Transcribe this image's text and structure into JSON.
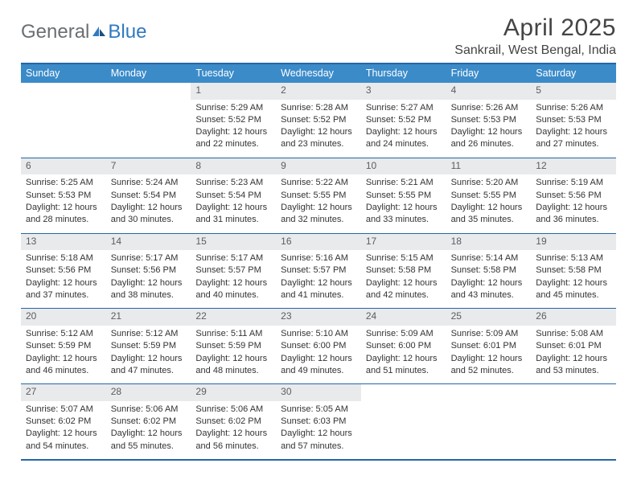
{
  "brand": {
    "general": "General",
    "blue": "Blue"
  },
  "title": "April 2025",
  "location": "Sankrail, West Bengal, India",
  "colors": {
    "header_bg": "#3b8bc9",
    "border": "#2567a5",
    "daynum_bg": "#e9eaec",
    "text": "#333333",
    "brand_gray": "#6a6f73",
    "brand_blue": "#2f7ac1"
  },
  "day_headers": [
    "Sunday",
    "Monday",
    "Tuesday",
    "Wednesday",
    "Thursday",
    "Friday",
    "Saturday"
  ],
  "weeks": [
    [
      null,
      null,
      {
        "n": "1",
        "sr": "5:29 AM",
        "ss": "5:52 PM",
        "dl1": "Daylight: 12 hours",
        "dl2": "and 22 minutes."
      },
      {
        "n": "2",
        "sr": "5:28 AM",
        "ss": "5:52 PM",
        "dl1": "Daylight: 12 hours",
        "dl2": "and 23 minutes."
      },
      {
        "n": "3",
        "sr": "5:27 AM",
        "ss": "5:52 PM",
        "dl1": "Daylight: 12 hours",
        "dl2": "and 24 minutes."
      },
      {
        "n": "4",
        "sr": "5:26 AM",
        "ss": "5:53 PM",
        "dl1": "Daylight: 12 hours",
        "dl2": "and 26 minutes."
      },
      {
        "n": "5",
        "sr": "5:26 AM",
        "ss": "5:53 PM",
        "dl1": "Daylight: 12 hours",
        "dl2": "and 27 minutes."
      }
    ],
    [
      {
        "n": "6",
        "sr": "5:25 AM",
        "ss": "5:53 PM",
        "dl1": "Daylight: 12 hours",
        "dl2": "and 28 minutes."
      },
      {
        "n": "7",
        "sr": "5:24 AM",
        "ss": "5:54 PM",
        "dl1": "Daylight: 12 hours",
        "dl2": "and 30 minutes."
      },
      {
        "n": "8",
        "sr": "5:23 AM",
        "ss": "5:54 PM",
        "dl1": "Daylight: 12 hours",
        "dl2": "and 31 minutes."
      },
      {
        "n": "9",
        "sr": "5:22 AM",
        "ss": "5:55 PM",
        "dl1": "Daylight: 12 hours",
        "dl2": "and 32 minutes."
      },
      {
        "n": "10",
        "sr": "5:21 AM",
        "ss": "5:55 PM",
        "dl1": "Daylight: 12 hours",
        "dl2": "and 33 minutes."
      },
      {
        "n": "11",
        "sr": "5:20 AM",
        "ss": "5:55 PM",
        "dl1": "Daylight: 12 hours",
        "dl2": "and 35 minutes."
      },
      {
        "n": "12",
        "sr": "5:19 AM",
        "ss": "5:56 PM",
        "dl1": "Daylight: 12 hours",
        "dl2": "and 36 minutes."
      }
    ],
    [
      {
        "n": "13",
        "sr": "5:18 AM",
        "ss": "5:56 PM",
        "dl1": "Daylight: 12 hours",
        "dl2": "and 37 minutes."
      },
      {
        "n": "14",
        "sr": "5:17 AM",
        "ss": "5:56 PM",
        "dl1": "Daylight: 12 hours",
        "dl2": "and 38 minutes."
      },
      {
        "n": "15",
        "sr": "5:17 AM",
        "ss": "5:57 PM",
        "dl1": "Daylight: 12 hours",
        "dl2": "and 40 minutes."
      },
      {
        "n": "16",
        "sr": "5:16 AM",
        "ss": "5:57 PM",
        "dl1": "Daylight: 12 hours",
        "dl2": "and 41 minutes."
      },
      {
        "n": "17",
        "sr": "5:15 AM",
        "ss": "5:58 PM",
        "dl1": "Daylight: 12 hours",
        "dl2": "and 42 minutes."
      },
      {
        "n": "18",
        "sr": "5:14 AM",
        "ss": "5:58 PM",
        "dl1": "Daylight: 12 hours",
        "dl2": "and 43 minutes."
      },
      {
        "n": "19",
        "sr": "5:13 AM",
        "ss": "5:58 PM",
        "dl1": "Daylight: 12 hours",
        "dl2": "and 45 minutes."
      }
    ],
    [
      {
        "n": "20",
        "sr": "5:12 AM",
        "ss": "5:59 PM",
        "dl1": "Daylight: 12 hours",
        "dl2": "and 46 minutes."
      },
      {
        "n": "21",
        "sr": "5:12 AM",
        "ss": "5:59 PM",
        "dl1": "Daylight: 12 hours",
        "dl2": "and 47 minutes."
      },
      {
        "n": "22",
        "sr": "5:11 AM",
        "ss": "5:59 PM",
        "dl1": "Daylight: 12 hours",
        "dl2": "and 48 minutes."
      },
      {
        "n": "23",
        "sr": "5:10 AM",
        "ss": "6:00 PM",
        "dl1": "Daylight: 12 hours",
        "dl2": "and 49 minutes."
      },
      {
        "n": "24",
        "sr": "5:09 AM",
        "ss": "6:00 PM",
        "dl1": "Daylight: 12 hours",
        "dl2": "and 51 minutes."
      },
      {
        "n": "25",
        "sr": "5:09 AM",
        "ss": "6:01 PM",
        "dl1": "Daylight: 12 hours",
        "dl2": "and 52 minutes."
      },
      {
        "n": "26",
        "sr": "5:08 AM",
        "ss": "6:01 PM",
        "dl1": "Daylight: 12 hours",
        "dl2": "and 53 minutes."
      }
    ],
    [
      {
        "n": "27",
        "sr": "5:07 AM",
        "ss": "6:02 PM",
        "dl1": "Daylight: 12 hours",
        "dl2": "and 54 minutes."
      },
      {
        "n": "28",
        "sr": "5:06 AM",
        "ss": "6:02 PM",
        "dl1": "Daylight: 12 hours",
        "dl2": "and 55 minutes."
      },
      {
        "n": "29",
        "sr": "5:06 AM",
        "ss": "6:02 PM",
        "dl1": "Daylight: 12 hours",
        "dl2": "and 56 minutes."
      },
      {
        "n": "30",
        "sr": "5:05 AM",
        "ss": "6:03 PM",
        "dl1": "Daylight: 12 hours",
        "dl2": "and 57 minutes."
      },
      null,
      null,
      null
    ]
  ],
  "labels": {
    "sunrise": "Sunrise: ",
    "sunset": "Sunset: "
  }
}
